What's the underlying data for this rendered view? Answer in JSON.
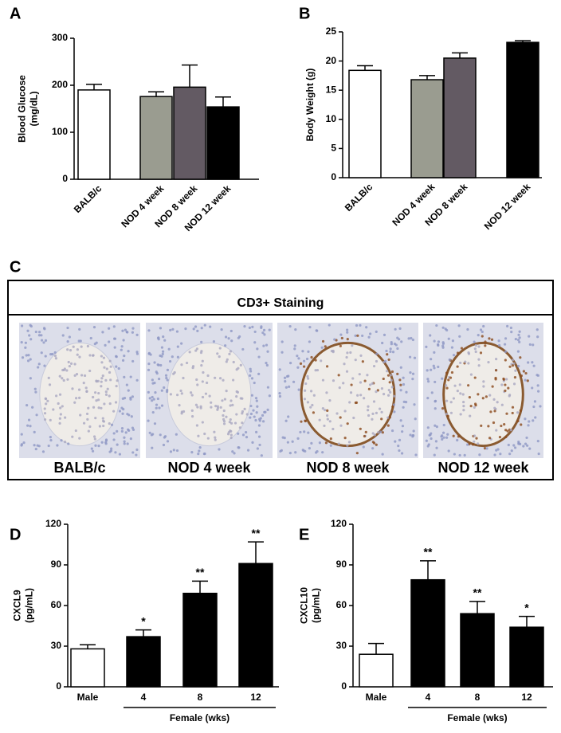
{
  "panels": [
    "A",
    "B",
    "C",
    "D",
    "E"
  ],
  "staining": {
    "title": "CD3+ Staining",
    "labels": [
      "BALB/c",
      "NOD 4 week",
      "NOD 8 week",
      "NOD 12 week"
    ]
  },
  "chart_data": [
    {
      "type": "bar",
      "ylabel": [
        "Blood Glucose",
        "(mg/dL)"
      ],
      "categories": [
        "BALB/c",
        "NOD 4 week",
        "NOD 8 week",
        "NOD 12 week"
      ],
      "values": [
        190,
        176,
        196,
        154
      ],
      "errors": [
        12,
        10,
        47,
        21
      ],
      "colors": [
        "#ffffff",
        "#9a9c90",
        "#635a63",
        "#000000"
      ],
      "ylim": [
        0,
        300
      ],
      "yticks": [
        0,
        100,
        200,
        300
      ]
    },
    {
      "type": "bar",
      "ylabel": [
        "Body Weight  (g)"
      ],
      "categories": [
        "BALB/c",
        "NOD 4 week",
        "NOD 8 week",
        "NOD 12 week"
      ],
      "values": [
        18.4,
        16.8,
        20.5,
        23.2
      ],
      "errors": [
        0.8,
        0.7,
        0.9,
        0.3
      ],
      "colors": [
        "#ffffff",
        "#9a9c90",
        "#635a63",
        "#000000"
      ],
      "ylim": [
        0,
        25
      ],
      "yticks": [
        0,
        5,
        10,
        15,
        20,
        25
      ]
    },
    {
      "type": "bar",
      "ylabel": [
        "CXCL9",
        "(pg/mL)"
      ],
      "categories": [
        "Male",
        "4",
        "8",
        "12"
      ],
      "values": [
        28,
        37,
        69,
        91
      ],
      "errors": [
        3,
        5,
        9,
        16
      ],
      "significance": [
        null,
        "*",
        "**",
        "**"
      ],
      "group_label": "Female (wks)",
      "colors": [
        "#ffffff",
        "#000000",
        "#000000",
        "#000000"
      ],
      "ylim": [
        0,
        120
      ],
      "yticks": [
        0,
        30,
        60,
        90,
        120
      ]
    },
    {
      "type": "bar",
      "ylabel": [
        "CXCL10",
        "(pg/mL)"
      ],
      "categories": [
        "Male",
        "4",
        "8",
        "12"
      ],
      "values": [
        24,
        79,
        54,
        44
      ],
      "errors": [
        8,
        14,
        9,
        8
      ],
      "significance": [
        null,
        "**",
        "**",
        "*"
      ],
      "group_label": "Female (wks)",
      "colors": [
        "#ffffff",
        "#000000",
        "#000000",
        "#000000"
      ],
      "ylim": [
        0,
        120
      ],
      "yticks": [
        0,
        30,
        60,
        90,
        120
      ]
    }
  ]
}
